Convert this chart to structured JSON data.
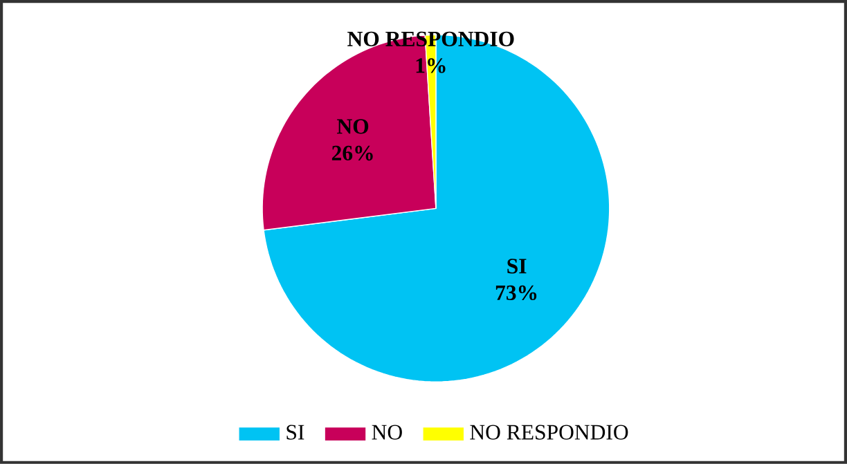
{
  "chart_data": {
    "type": "pie",
    "categories": [
      "SI",
      "NO",
      "NO RESPONDIO"
    ],
    "values": [
      73,
      26,
      1
    ],
    "value_labels": [
      "73%",
      "26%",
      "1%"
    ],
    "colors": [
      "#00c3f3",
      "#c8005a",
      "#ffff00"
    ],
    "legend": "bottom"
  }
}
